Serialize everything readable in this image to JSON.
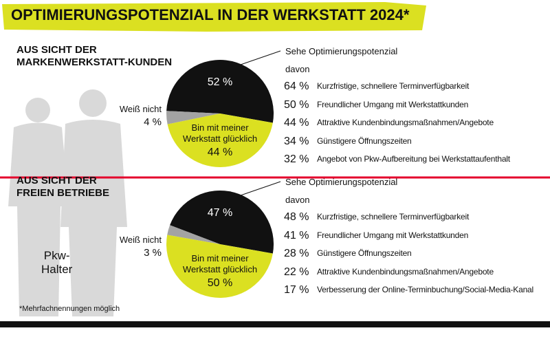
{
  "title": "OPTIMIERUNGSPOTENZIAL IN DER WERKSTATT 2024*",
  "image_label": "Pkw-\nHalter",
  "footnote": "*Mehrfachnennungen möglich",
  "chart_data": [
    {
      "type": "pie",
      "title": "AUS SICHT DER\nMARKENWERKSTATT-KUNDEN",
      "categories": [
        "Sehe Optimierungspotenzial",
        "Weiß nicht",
        "Bin mit meiner\nWerkstatt glücklich"
      ],
      "values": [
        52,
        4,
        44
      ],
      "value_labels": [
        "52 %",
        "4 %",
        "44 %"
      ],
      "colors": [
        "#111111",
        "#a3a3a3",
        "#dbe021"
      ],
      "breakdown": {
        "label": "davon",
        "categories": [
          "Kurzfristige, schnellere Terminverfügbarkeit",
          "Freundlicher Umgang mit Werkstattkunden",
          "Attraktive Kundenbindungsmaßnahmen/Angebote",
          "Günstigere Öffnungszeiten",
          "Angebot von Pkw-Aufbereitung bei Werkstattaufenthalt"
        ],
        "values": [
          64,
          50,
          44,
          34,
          32
        ],
        "value_labels": [
          "64 %",
          "50 %",
          "44 %",
          "34 %",
          "32 %"
        ]
      }
    },
    {
      "type": "pie",
      "title": "AUS SICHT DER\nFREIEN BETRIEBE",
      "categories": [
        "Sehe Optimierungspotenzial",
        "Weiß nicht",
        "Bin mit meiner\nWerkstatt glücklich"
      ],
      "values": [
        47,
        3,
        50
      ],
      "value_labels": [
        "47 %",
        "3 %",
        "50 %"
      ],
      "colors": [
        "#111111",
        "#a3a3a3",
        "#dbe021"
      ],
      "breakdown": {
        "label": "davon",
        "categories": [
          "Kurzfristige, schnellere Terminverfügbarkeit",
          "Freundlicher Umgang mit Werkstattkunden",
          "Günstigere Öffnungszeiten",
          "Attraktive Kundenbindungsmaßnahmen/Angebote",
          "Verbesserung der Online-Terminbuchung/Social-Media-Kanal"
        ],
        "values": [
          48,
          41,
          28,
          22,
          17
        ],
        "value_labels": [
          "48 %",
          "41 %",
          "28 %",
          "22 %",
          "17 %"
        ]
      }
    }
  ]
}
